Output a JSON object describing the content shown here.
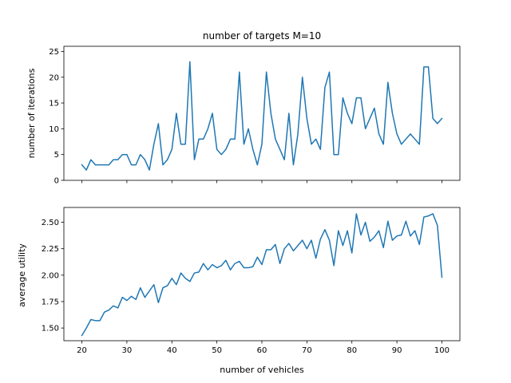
{
  "chart_data": [
    {
      "type": "line",
      "title": "number of targets M=10",
      "xlabel": "",
      "ylabel": "number of iterations",
      "xlim": [
        16,
        104
      ],
      "ylim": [
        0,
        26
      ],
      "yticks": [
        0,
        5,
        10,
        15,
        20,
        25
      ],
      "xticks": [
        20,
        30,
        40,
        50,
        60,
        70,
        80,
        90,
        100
      ],
      "show_xtick_labels": false,
      "grid": false,
      "line_color": "#1f77b4",
      "x": [
        20,
        21,
        22,
        23,
        24,
        25,
        26,
        27,
        28,
        29,
        30,
        31,
        32,
        33,
        34,
        35,
        36,
        37,
        38,
        39,
        40,
        41,
        42,
        43,
        44,
        45,
        46,
        47,
        48,
        49,
        50,
        51,
        52,
        53,
        54,
        55,
        56,
        57,
        58,
        59,
        60,
        61,
        62,
        63,
        64,
        65,
        66,
        67,
        68,
        69,
        70,
        71,
        72,
        73,
        74,
        75,
        76,
        77,
        78,
        79,
        80,
        81,
        82,
        83,
        84,
        85,
        86,
        87,
        88,
        89,
        90,
        91,
        92,
        93,
        94,
        95,
        96,
        97,
        98,
        99,
        100
      ],
      "y": [
        3,
        2,
        4,
        3,
        3,
        3,
        3,
        4,
        4,
        5,
        5,
        3,
        3,
        5,
        4,
        2,
        7,
        11,
        3,
        4,
        6,
        13,
        7,
        7,
        23,
        4,
        8,
        8,
        10,
        13,
        6,
        5,
        6,
        8,
        8,
        21,
        7,
        10,
        6,
        3,
        7,
        21,
        13,
        8,
        6,
        4,
        13,
        3,
        9,
        20,
        12,
        7,
        8,
        6,
        18,
        21,
        5,
        5,
        16,
        13,
        11,
        16,
        16,
        10,
        12,
        14,
        9,
        7,
        19,
        13,
        9,
        7,
        8,
        9,
        8,
        7,
        22,
        22,
        12,
        11,
        12
      ]
    },
    {
      "type": "line",
      "title": "",
      "xlabel": "number of vehicles",
      "ylabel": "average utility",
      "xlim": [
        16,
        104
      ],
      "ylim": [
        1.38,
        2.64
      ],
      "yticks": [
        1.5,
        1.75,
        2.0,
        2.25,
        2.5
      ],
      "ytick_labels": [
        "1.50",
        "1.75",
        "2.00",
        "2.25",
        "2.50"
      ],
      "xticks": [
        20,
        30,
        40,
        50,
        60,
        70,
        80,
        90,
        100
      ],
      "grid": false,
      "line_color": "#1f77b4",
      "x": [
        20,
        21,
        22,
        23,
        24,
        25,
        26,
        27,
        28,
        29,
        30,
        31,
        32,
        33,
        34,
        35,
        36,
        37,
        38,
        39,
        40,
        41,
        42,
        43,
        44,
        45,
        46,
        47,
        48,
        49,
        50,
        51,
        52,
        53,
        54,
        55,
        56,
        57,
        58,
        59,
        60,
        61,
        62,
        63,
        64,
        65,
        66,
        67,
        68,
        69,
        70,
        71,
        72,
        73,
        74,
        75,
        76,
        77,
        78,
        79,
        80,
        81,
        82,
        83,
        84,
        85,
        86,
        87,
        88,
        89,
        90,
        91,
        92,
        93,
        94,
        95,
        96,
        97,
        98,
        99,
        100
      ],
      "y": [
        1.43,
        1.5,
        1.58,
        1.57,
        1.57,
        1.65,
        1.67,
        1.71,
        1.69,
        1.79,
        1.76,
        1.8,
        1.77,
        1.88,
        1.79,
        1.85,
        1.91,
        1.74,
        1.88,
        1.9,
        1.97,
        1.91,
        2.02,
        1.97,
        1.94,
        2.02,
        2.03,
        2.11,
        2.05,
        2.1,
        2.07,
        2.09,
        2.14,
        2.05,
        2.11,
        2.13,
        2.07,
        2.07,
        2.08,
        2.17,
        2.1,
        2.24,
        2.24,
        2.29,
        2.11,
        2.25,
        2.3,
        2.23,
        2.28,
        2.33,
        2.25,
        2.33,
        2.16,
        2.34,
        2.43,
        2.33,
        2.09,
        2.42,
        2.28,
        2.42,
        2.21,
        2.58,
        2.38,
        2.5,
        2.32,
        2.36,
        2.42,
        2.26,
        2.51,
        2.33,
        2.37,
        2.38,
        2.51,
        2.37,
        2.42,
        2.29,
        2.55,
        2.56,
        2.58,
        2.47,
        1.98
      ]
    }
  ]
}
